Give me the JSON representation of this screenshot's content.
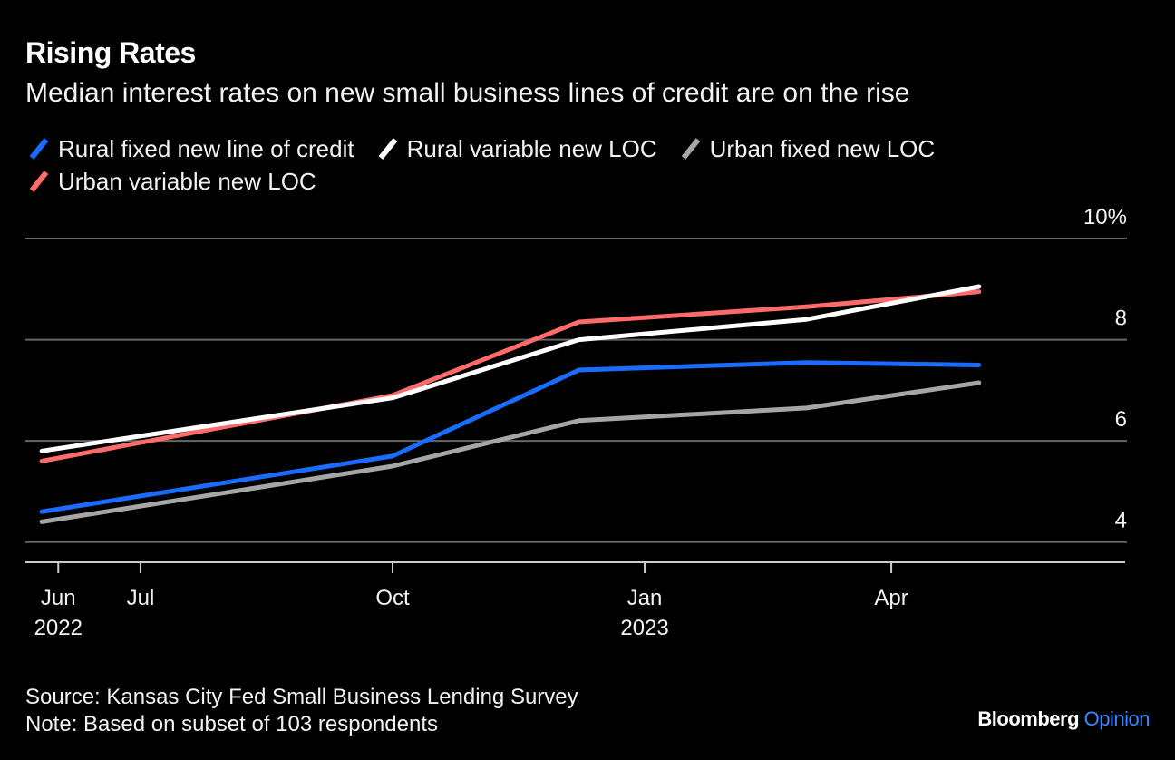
{
  "title": "Rising Rates",
  "subtitle": "Median interest rates on new small business lines of credit are on the rise",
  "legend": [
    {
      "label": "Rural fixed new line of credit",
      "color": "#1a6cff"
    },
    {
      "label": "Rural variable new LOC",
      "color": "#ffffff"
    },
    {
      "label": "Urban fixed new LOC",
      "color": "#a6a6a6"
    },
    {
      "label": "Urban variable new LOC",
      "color": "#ff6b6b"
    }
  ],
  "footer": {
    "source": "Source: Kansas City Fed Small Business Lending Survey",
    "note": "Note: Based on subset of 103 respondents"
  },
  "brand": {
    "name": "Bloomberg",
    "suffix": "Opinion"
  },
  "chart_data": {
    "type": "line",
    "x": [
      "2022-05-26",
      "2022-10-01",
      "2022-12-08",
      "2023-03-01",
      "2023-05-03"
    ],
    "x_ticks": [
      {
        "date": "2022-06-01",
        "label": "Jun",
        "sublabel": "2022"
      },
      {
        "date": "2022-07-01",
        "label": "Jul",
        "sublabel": ""
      },
      {
        "date": "2022-10-01",
        "label": "Oct",
        "sublabel": ""
      },
      {
        "date": "2023-01-01",
        "label": "Jan",
        "sublabel": "2023"
      },
      {
        "date": "2023-04-01",
        "label": "Apr",
        "sublabel": ""
      }
    ],
    "y_ticks": [
      {
        "value": 4,
        "label": "4"
      },
      {
        "value": 6,
        "label": "6"
      },
      {
        "value": 8,
        "label": "8"
      },
      {
        "value": 10,
        "label": "10%"
      }
    ],
    "ylim": [
      3.6,
      10
    ],
    "xlim": [
      "2022-05-20",
      "2023-06-26"
    ],
    "series": [
      {
        "name": "Rural fixed new line of credit",
        "color": "#1a6cff",
        "values": [
          4.6,
          5.7,
          7.4,
          7.55,
          7.5
        ]
      },
      {
        "name": "Rural variable new LOC",
        "color": "#ffffff",
        "values": [
          5.8,
          6.85,
          8.0,
          8.4,
          9.05
        ]
      },
      {
        "name": "Urban fixed new LOC",
        "color": "#a6a6a6",
        "values": [
          4.4,
          5.5,
          6.4,
          6.65,
          7.15
        ]
      },
      {
        "name": "Urban variable new LOC",
        "color": "#ff6b6b",
        "values": [
          5.6,
          6.9,
          8.35,
          8.65,
          8.95
        ]
      }
    ],
    "grid": true,
    "legend_position": "top-left"
  }
}
